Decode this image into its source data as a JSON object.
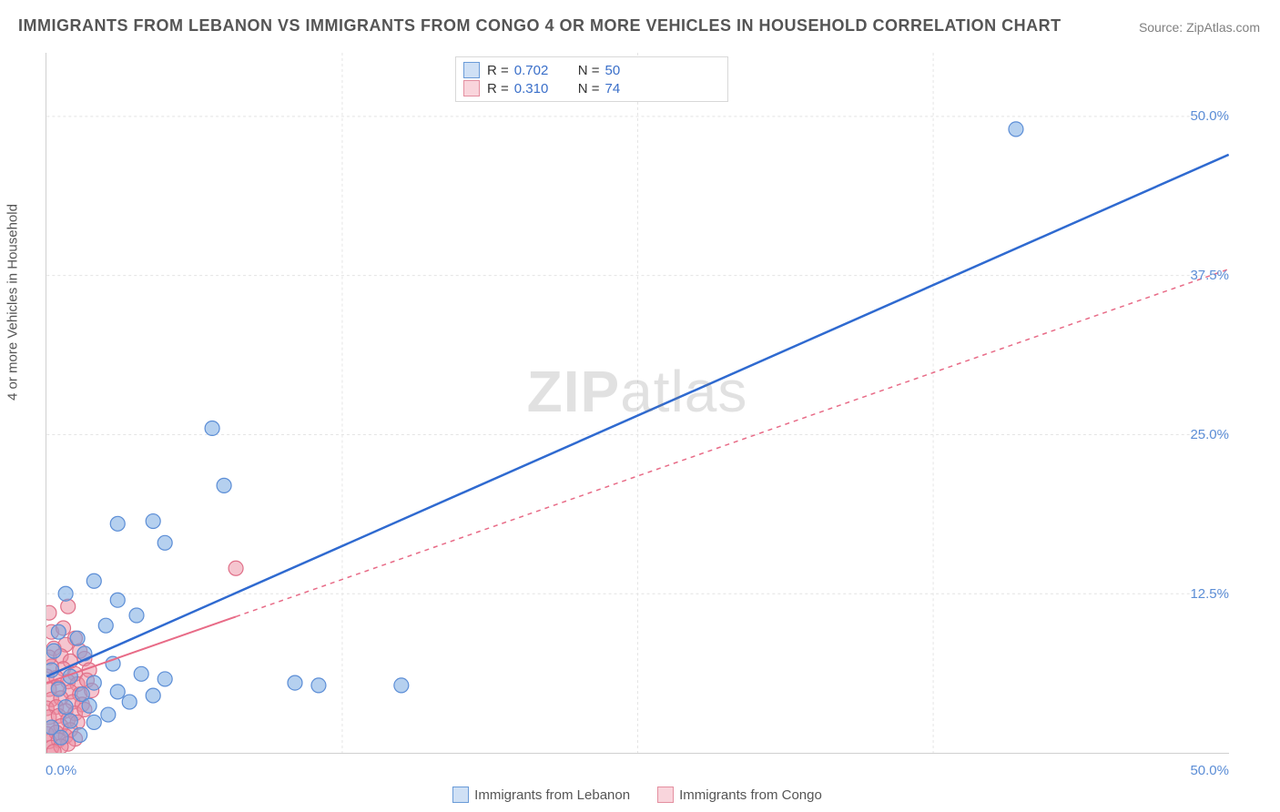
{
  "title": "IMMIGRANTS FROM LEBANON VS IMMIGRANTS FROM CONGO 4 OR MORE VEHICLES IN HOUSEHOLD CORRELATION CHART",
  "source": "Source: ZipAtlas.com",
  "y_axis_label": "4 or more Vehicles in Household",
  "watermark_a": "ZIP",
  "watermark_b": "atlas",
  "chart": {
    "type": "scatter",
    "x_domain": [
      0,
      50
    ],
    "y_domain": [
      0,
      55
    ],
    "y_ticks": [
      12.5,
      25.0,
      37.5,
      50.0
    ],
    "x_min_label": "0.0%",
    "x_max_label": "50.0%",
    "grid_color": "#e4e4e4",
    "axis_label_color": "#5b8dd6",
    "background_color": "#ffffff",
    "series": [
      {
        "name": "Immigrants from Lebanon",
        "swatch_fill": "#cfe0f5",
        "swatch_stroke": "#6a9bd8",
        "marker_fill": "rgba(120,170,225,0.55)",
        "marker_stroke": "#5b8dd6",
        "marker_radius": 8,
        "line_color": "#2f6ad0",
        "line_width": 2.5,
        "line_dash": "none",
        "r_value": "0.702",
        "n_value": "50",
        "regression": {
          "x1": 0,
          "y1": 6.0,
          "x2": 50,
          "y2": 47.0,
          "solid_until_x": 50
        },
        "points": [
          [
            41.0,
            49.0
          ],
          [
            7.0,
            25.5
          ],
          [
            7.5,
            21.0
          ],
          [
            3.0,
            18.0
          ],
          [
            4.5,
            18.2
          ],
          [
            5.0,
            16.5
          ],
          [
            2.0,
            13.5
          ],
          [
            0.8,
            12.5
          ],
          [
            3.0,
            12.0
          ],
          [
            2.5,
            10.0
          ],
          [
            3.8,
            10.8
          ],
          [
            0.5,
            9.5
          ],
          [
            1.3,
            9.0
          ],
          [
            0.3,
            8.0
          ],
          [
            1.6,
            7.8
          ],
          [
            2.8,
            7.0
          ],
          [
            4.0,
            6.2
          ],
          [
            5.0,
            5.8
          ],
          [
            0.2,
            6.5
          ],
          [
            1.0,
            6.0
          ],
          [
            2.0,
            5.5
          ],
          [
            0.5,
            5.0
          ],
          [
            1.5,
            4.6
          ],
          [
            3.0,
            4.8
          ],
          [
            3.5,
            4.0
          ],
          [
            0.8,
            3.6
          ],
          [
            1.8,
            3.7
          ],
          [
            2.6,
            3.0
          ],
          [
            4.5,
            4.5
          ],
          [
            10.5,
            5.5
          ],
          [
            11.5,
            5.3
          ],
          [
            15.0,
            5.3
          ],
          [
            0.2,
            2.0
          ],
          [
            1.0,
            2.5
          ],
          [
            2.0,
            2.4
          ],
          [
            0.6,
            1.2
          ],
          [
            1.4,
            1.4
          ]
        ]
      },
      {
        "name": "Immigrants from Congo",
        "swatch_fill": "#f9d5dc",
        "swatch_stroke": "#e48fa0",
        "marker_fill": "rgba(235,140,160,0.5)",
        "marker_stroke": "#e06f88",
        "marker_radius": 8,
        "line_color": "#e86b87",
        "line_width": 2,
        "line_dash": "5,5",
        "r_value": "0.310",
        "n_value": "74",
        "regression": {
          "x1": 0,
          "y1": 5.5,
          "x2": 50,
          "y2": 38.0,
          "solid_until_x": 8
        },
        "points": [
          [
            8.0,
            14.5
          ],
          [
            0.1,
            11.0
          ],
          [
            0.9,
            11.5
          ],
          [
            0.2,
            9.5
          ],
          [
            0.7,
            9.8
          ],
          [
            1.2,
            9.0
          ],
          [
            0.3,
            8.2
          ],
          [
            0.8,
            8.5
          ],
          [
            1.4,
            8.0
          ],
          [
            0.1,
            7.5
          ],
          [
            0.6,
            7.6
          ],
          [
            1.0,
            7.2
          ],
          [
            1.6,
            7.4
          ],
          [
            0.2,
            6.8
          ],
          [
            0.7,
            6.6
          ],
          [
            1.2,
            6.2
          ],
          [
            1.8,
            6.5
          ],
          [
            0.0,
            6.0
          ],
          [
            0.4,
            5.9
          ],
          [
            0.9,
            5.6
          ],
          [
            1.3,
            5.4
          ],
          [
            1.7,
            5.7
          ],
          [
            0.1,
            5.0
          ],
          [
            0.5,
            5.1
          ],
          [
            1.0,
            4.8
          ],
          [
            1.4,
            4.6
          ],
          [
            1.9,
            4.9
          ],
          [
            0.2,
            4.2
          ],
          [
            0.6,
            4.3
          ],
          [
            1.1,
            4.0
          ],
          [
            1.5,
            3.8
          ],
          [
            0.0,
            3.5
          ],
          [
            0.4,
            3.6
          ],
          [
            0.8,
            3.3
          ],
          [
            1.2,
            3.1
          ],
          [
            1.6,
            3.4
          ],
          [
            0.1,
            2.8
          ],
          [
            0.5,
            2.9
          ],
          [
            0.9,
            2.6
          ],
          [
            1.3,
            2.4
          ],
          [
            0.2,
            2.0
          ],
          [
            0.6,
            2.1
          ],
          [
            1.0,
            1.8
          ],
          [
            0.0,
            1.5
          ],
          [
            0.4,
            1.6
          ],
          [
            0.8,
            1.3
          ],
          [
            1.2,
            1.1
          ],
          [
            0.1,
            0.9
          ],
          [
            0.5,
            1.0
          ],
          [
            0.9,
            0.7
          ],
          [
            0.2,
            0.4
          ],
          [
            0.6,
            0.5
          ],
          [
            0.3,
            0.1
          ]
        ]
      }
    ]
  },
  "legend_top_label_r": "R  =",
  "legend_top_label_n": "N  ="
}
